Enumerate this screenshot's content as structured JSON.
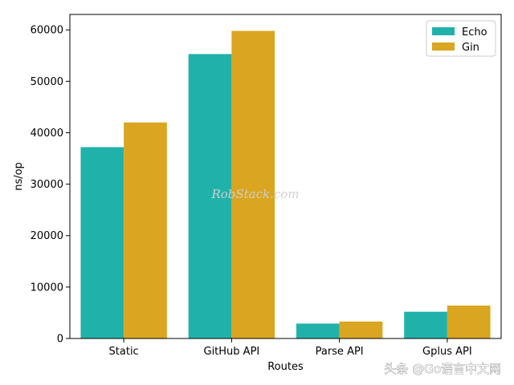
{
  "chart_data": {
    "type": "bar",
    "title": "",
    "xlabel": "Routes",
    "ylabel": "ns/op",
    "categories": [
      "Static",
      "GitHub API",
      "Parse API",
      "Gplus API"
    ],
    "series": [
      {
        "name": "Echo",
        "color": "#20b2aa",
        "values": [
          37200,
          55300,
          2900,
          5200
        ]
      },
      {
        "name": "Gin",
        "color": "#daa520",
        "values": [
          42000,
          59800,
          3300,
          6400
        ]
      }
    ],
    "ylim": [
      0,
      63000
    ],
    "yticks": [
      0,
      10000,
      20000,
      30000,
      40000,
      50000,
      60000
    ],
    "grid": false,
    "legend_position": "top-right"
  },
  "watermarks": {
    "center": "RobStack.com",
    "corner": "头条 @Go语言中文网"
  }
}
